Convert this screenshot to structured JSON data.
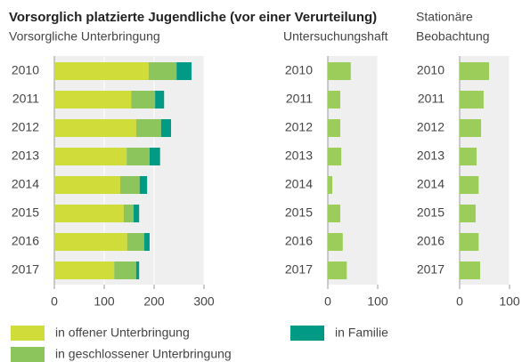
{
  "chart_data": [
    {
      "type": "hbar-stacked",
      "title": "Vorsorglich platzierte Jugendliche (vor einer Verurteilung)",
      "subtitle": [
        "Vorsorgliche Unterbringung"
      ],
      "categories": [
        "2010",
        "2011",
        "2012",
        "2013",
        "2014",
        "2015",
        "2016",
        "2017"
      ],
      "series": [
        {
          "name": "in offener Unterbringung",
          "color": "#cfdc3a",
          "values": [
            189,
            154,
            164,
            145,
            132,
            139,
            146,
            120
          ]
        },
        {
          "name": "in geschlossener Unterbringung",
          "color": "#8cc55c",
          "values": [
            56,
            48,
            50,
            46,
            39,
            20,
            34,
            44
          ]
        },
        {
          "name": "in Familie",
          "color": "#009a85",
          "values": [
            30,
            18,
            20,
            21,
            15,
            11,
            11,
            6
          ]
        }
      ],
      "xlim": [
        0,
        300
      ],
      "xticks": [
        0,
        100,
        200,
        300
      ],
      "grid": true
    },
    {
      "type": "hbar-stacked",
      "subtitle": [
        "Untersuchungshaft"
      ],
      "categories": [
        "2010",
        "2011",
        "2012",
        "2013",
        "2014",
        "2015",
        "2016",
        "2017"
      ],
      "series": [
        {
          "color": "#9ccc5a",
          "values": [
            46,
            25,
            25,
            27,
            9,
            25,
            30,
            38
          ]
        }
      ],
      "xlim": [
        0,
        100
      ],
      "xticks": [
        0,
        100
      ],
      "grid": true
    },
    {
      "type": "hbar-stacked",
      "subtitle": [
        "Stationäre",
        "Beobachtung"
      ],
      "categories": [
        "2010",
        "2011",
        "2012",
        "2013",
        "2014",
        "2015",
        "2016",
        "2017"
      ],
      "series": [
        {
          "color": "#9ccc5a",
          "values": [
            59,
            48,
            43,
            34,
            38,
            32,
            38,
            41
          ]
        }
      ],
      "xlim": [
        0,
        100
      ],
      "xticks": [
        0,
        100
      ],
      "grid": true
    }
  ]
}
